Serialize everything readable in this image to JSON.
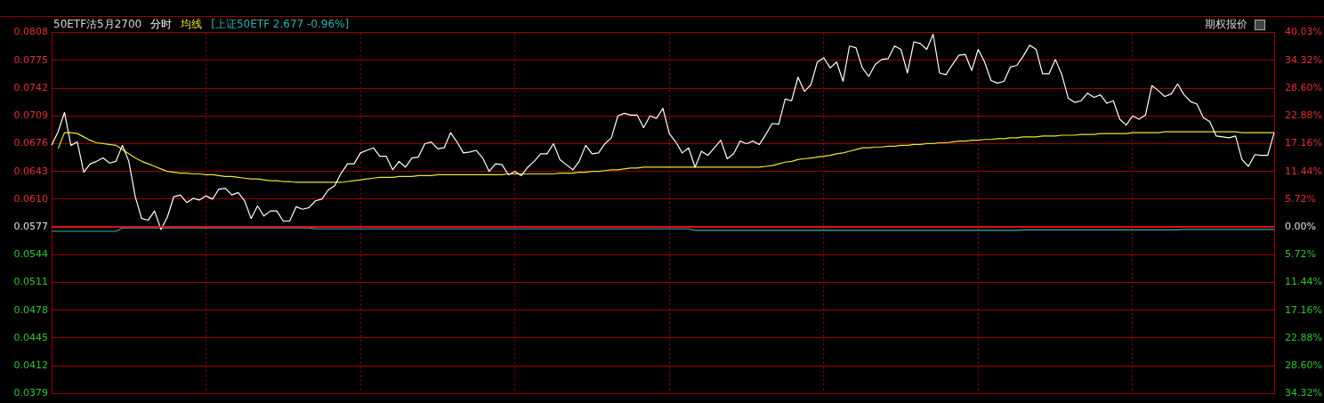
{
  "chart_data": {
    "type": "line",
    "title": "50ETF沽5月2700",
    "legend": "top left",
    "grid": true,
    "marker": "none",
    "line_style": "solid",
    "annotations": [
      "期权报价"
    ],
    "categories": [
      null,
      null,
      null,
      null,
      null,
      null,
      null,
      null,
      null,
      null,
      null,
      null,
      null,
      null,
      null,
      null,
      null,
      null,
      null,
      null,
      null,
      null,
      null,
      null,
      null,
      null,
      null,
      null,
      null,
      null,
      null,
      null,
      null,
      null,
      null,
      null,
      null,
      null,
      null,
      null,
      null,
      null,
      null,
      null,
      null,
      null,
      null,
      null,
      null,
      null,
      null,
      null,
      null,
      null,
      null,
      null,
      null,
      null,
      null,
      null,
      null,
      null,
      null,
      null,
      null,
      null,
      null,
      null,
      null,
      null,
      null,
      null,
      null,
      null,
      null,
      null,
      null,
      null,
      null,
      null,
      null,
      null,
      null,
      null,
      null,
      null,
      null,
      null,
      null,
      null,
      null,
      null,
      null,
      null,
      null,
      null,
      null,
      null,
      null,
      null,
      null,
      null,
      null,
      null,
      null,
      null,
      null,
      null,
      null,
      null,
      null,
      null,
      null,
      null,
      null,
      null,
      null,
      null,
      null,
      null,
      null,
      null,
      null,
      null,
      null,
      null,
      null,
      null,
      null,
      null,
      null,
      null,
      null,
      null,
      null,
      null,
      null,
      null,
      null,
      null,
      null,
      null,
      null,
      null,
      null,
      null,
      null,
      null,
      null,
      null,
      null,
      null,
      null,
      null,
      null,
      null,
      null,
      null,
      null,
      null,
      null,
      null,
      null,
      null,
      null,
      null,
      null,
      null,
      null,
      null,
      null,
      null,
      null,
      null,
      null,
      null,
      null,
      null,
      null,
      null,
      null,
      null,
      null,
      null,
      null,
      null,
      null,
      null,
      null,
      null,
      null
    ],
    "ylim": [
      0.0379,
      0.0808
    ],
    "yticks": [
      0.0379,
      0.0412,
      0.0445,
      0.0478,
      0.0511,
      0.0544,
      0.0577,
      {
        "value": 0.061,
        "label": "0.0610"
      },
      0.0643,
      0.0676,
      0.0709,
      0.0742,
      0.0775,
      0.0808
    ],
    "y2lim": [
      -34.32,
      40.03
    ],
    "y2ticks": [
      {
        "value": -34.32,
        "label": "34.32%"
      },
      {
        "value": -28.6,
        "label": "28.60%"
      },
      {
        "value": -22.88,
        "label": "22.88%"
      },
      {
        "value": -17.16,
        "label": "17.16%"
      },
      {
        "value": -11.44,
        "label": "11.44%"
      },
      {
        "value": -5.72,
        "label": "5.72%"
      },
      {
        "value": 0,
        "label": "0.00%"
      },
      {
        "value": 5.72,
        "label": "5.72%"
      },
      {
        "value": 11.44,
        "label": "11.44%"
      },
      {
        "value": 17.16,
        "label": "17.16%"
      },
      {
        "value": 22.88,
        "label": "22.88%"
      },
      {
        "value": 28.6,
        "label": "28.60%"
      },
      {
        "value": 34.32,
        "label": "34.32%"
      },
      {
        "value": 40.03,
        "label": "40.03%"
      }
    ],
    "ref_lines": [
      {
        "axis": "y",
        "value": 0.0577,
        "color": "#e01010"
      }
    ],
    "series": [
      {
        "name": "分时",
        "color": "#ffffff",
        "values": [
          0.0674,
          0.069,
          0.0713,
          0.0674,
          0.0678,
          0.0642,
          0.0652,
          0.0655,
          0.0659,
          0.0653,
          0.0655,
          0.0674,
          0.0655,
          0.0613,
          0.0587,
          0.0585,
          0.0596,
          0.0574,
          0.0589,
          0.0613,
          0.0615,
          0.0606,
          0.0611,
          0.0609,
          0.0614,
          0.061,
          0.0622,
          0.0623,
          0.0615,
          0.0618,
          0.0608,
          0.0587,
          0.0602,
          0.059,
          0.0596,
          0.0596,
          0.0584,
          0.0584,
          0.0601,
          0.0598,
          0.06,
          0.0608,
          0.061,
          0.0621,
          0.0626,
          0.0641,
          0.0652,
          0.0652,
          0.0665,
          0.0668,
          0.0671,
          0.0661,
          0.0661,
          0.0645,
          0.0655,
          0.0648,
          0.0659,
          0.066,
          0.0676,
          0.0678,
          0.067,
          0.0671,
          0.0689,
          0.0678,
          0.0665,
          0.0666,
          0.0668,
          0.0659,
          0.0643,
          0.0652,
          0.0651,
          0.0639,
          0.0643,
          0.0638,
          0.0648,
          0.0655,
          0.0664,
          0.0664,
          0.0676,
          0.0657,
          0.0651,
          0.0645,
          0.0655,
          0.0674,
          0.0664,
          0.0665,
          0.0676,
          0.0683,
          0.0709,
          0.0712,
          0.071,
          0.071,
          0.0695,
          0.0709,
          0.0706,
          0.0718,
          0.0688,
          0.0678,
          0.0665,
          0.0671,
          0.0648,
          0.0667,
          0.0662,
          0.0671,
          0.068,
          0.0658,
          0.0664,
          0.0679,
          0.0676,
          0.0679,
          0.0675,
          0.0687,
          0.07,
          0.0699,
          0.0729,
          0.0727,
          0.0755,
          0.0738,
          0.0746,
          0.0773,
          0.0778,
          0.0766,
          0.0773,
          0.075,
          0.0792,
          0.079,
          0.0766,
          0.0756,
          0.077,
          0.0776,
          0.0777,
          0.0792,
          0.0788,
          0.076,
          0.0797,
          0.0795,
          0.0788,
          0.0806,
          0.076,
          0.0758,
          0.077,
          0.0781,
          0.0782,
          0.0763,
          0.0788,
          0.0773,
          0.0751,
          0.0748,
          0.075,
          0.0767,
          0.0769,
          0.078,
          0.0793,
          0.0788,
          0.0759,
          0.0759,
          0.0776,
          0.0758,
          0.073,
          0.0725,
          0.0727,
          0.0736,
          0.0731,
          0.0734,
          0.0724,
          0.0727,
          0.0705,
          0.0698,
          0.0709,
          0.0705,
          0.071,
          0.0745,
          0.0739,
          0.0732,
          0.0735,
          0.0747,
          0.0734,
          0.0726,
          0.0723,
          0.0707,
          0.0702,
          0.0685,
          0.0684,
          0.0683,
          0.0685,
          0.0657,
          0.0649,
          0.0663,
          0.0662,
          0.0662,
          0.0689
        ]
      },
      {
        "name": "均线",
        "color": "#e8e830",
        "values": [
          null,
          0.067,
          0.0689,
          0.0689,
          0.0688,
          0.0684,
          0.068,
          0.0677,
          0.0676,
          0.0675,
          0.0674,
          0.0669,
          0.0664,
          0.0659,
          0.0655,
          0.0652,
          0.0649,
          0.0646,
          0.0643,
          0.0642,
          0.0641,
          0.0641,
          0.064,
          0.064,
          0.0639,
          0.0639,
          0.0638,
          0.0637,
          0.0637,
          0.0636,
          0.0635,
          0.0634,
          0.0634,
          0.0633,
          0.0632,
          0.0632,
          0.0631,
          0.0631,
          0.063,
          0.063,
          0.063,
          0.063,
          0.063,
          0.063,
          0.063,
          0.063,
          0.0631,
          0.0632,
          0.0633,
          0.0634,
          0.0635,
          0.0636,
          0.0636,
          0.0636,
          0.0637,
          0.0637,
          0.0637,
          0.0638,
          0.0638,
          0.0638,
          0.0639,
          0.0639,
          0.0639,
          0.0639,
          0.0639,
          0.0639,
          0.0639,
          0.0639,
          0.0639,
          0.0639,
          0.0639,
          0.064,
          0.064,
          0.064,
          0.064,
          0.064,
          0.064,
          0.064,
          0.064,
          0.0641,
          0.0641,
          0.0641,
          0.0642,
          0.0642,
          0.0643,
          0.0643,
          0.0644,
          0.0645,
          0.0645,
          0.0646,
          0.0647,
          0.0647,
          0.0648,
          0.0648,
          0.0648,
          0.0648,
          0.0648,
          0.0648,
          0.0648,
          0.0648,
          0.0648,
          0.0648,
          0.0648,
          0.0648,
          0.0648,
          0.0648,
          0.0648,
          0.0648,
          0.0648,
          0.0648,
          0.0648,
          0.0649,
          0.065,
          0.0652,
          0.0654,
          0.0655,
          0.0657,
          0.0658,
          0.0659,
          0.066,
          0.0661,
          0.0662,
          0.0664,
          0.0665,
          0.0667,
          0.0669,
          0.0671,
          0.0671,
          0.0672,
          0.0672,
          0.0673,
          0.0673,
          0.0674,
          0.0674,
          0.0675,
          0.0675,
          0.0676,
          0.0676,
          0.0677,
          0.0677,
          0.0678,
          0.0679,
          0.0679,
          0.068,
          0.068,
          0.0681,
          0.0681,
          0.0682,
          0.0682,
          0.0683,
          0.0683,
          0.0684,
          0.0684,
          0.0684,
          0.0685,
          0.0685,
          0.0685,
          0.0686,
          0.0686,
          0.0686,
          0.0687,
          0.0687,
          0.0687,
          0.0688,
          0.0688,
          0.0688,
          0.0688,
          0.0688,
          0.0689,
          0.0689,
          0.0689,
          0.0689,
          0.0689,
          0.069,
          0.069,
          0.069,
          0.069,
          0.069,
          0.069,
          0.069,
          0.069,
          0.069,
          0.069,
          0.069,
          0.069,
          0.0689,
          0.0689,
          0.0689,
          0.0689,
          0.0689,
          0.0689
        ]
      },
      {
        "name": "[上证50ETF 2.677 -0.96%]",
        "color": "#30b0b0",
        "axis": "y2",
        "values": [
          -0.9,
          -0.9,
          -0.9,
          -0.9,
          -0.9,
          -0.9,
          -0.9,
          -0.9,
          -0.9,
          -0.9,
          -0.9,
          -0.2,
          -0.2,
          -0.2,
          -0.2,
          -0.2,
          -0.2,
          -0.2,
          -0.2,
          -0.2,
          -0.2,
          -0.2,
          -0.2,
          -0.2,
          -0.2,
          -0.2,
          -0.2,
          -0.2,
          -0.2,
          -0.2,
          -0.2,
          -0.2,
          -0.2,
          -0.2,
          -0.2,
          -0.2,
          -0.2,
          -0.2,
          -0.2,
          -0.2,
          -0.2,
          -0.4,
          -0.4,
          -0.4,
          -0.4,
          -0.4,
          -0.4,
          -0.4,
          -0.4,
          -0.4,
          -0.4,
          -0.4,
          -0.4,
          -0.4,
          -0.4,
          -0.4,
          -0.4,
          -0.4,
          -0.4,
          -0.4,
          -0.4,
          -0.4,
          -0.4,
          -0.4,
          -0.4,
          -0.4,
          -0.4,
          -0.4,
          -0.4,
          -0.4,
          -0.4,
          -0.4,
          -0.4,
          -0.4,
          -0.4,
          -0.4,
          -0.4,
          -0.4,
          -0.4,
          -0.4,
          -0.4,
          -0.4,
          -0.4,
          -0.4,
          -0.4,
          -0.4,
          -0.4,
          -0.4,
          -0.4,
          -0.4,
          -0.4,
          -0.4,
          -0.4,
          -0.4,
          -0.4,
          -0.4,
          -0.4,
          -0.4,
          -0.4,
          -0.4,
          -0.7,
          -0.7,
          -0.7,
          -0.7,
          -0.7,
          -0.7,
          -0.7,
          -0.7,
          -0.7,
          -0.7,
          -0.7,
          -0.7,
          -0.7,
          -0.7,
          -0.7,
          -0.7,
          -0.7,
          -0.7,
          -0.7,
          -0.7,
          -0.7,
          -0.7,
          -0.7,
          -0.7,
          -0.7,
          -0.7,
          -0.7,
          -0.7,
          -0.7,
          -0.7,
          -0.7,
          -0.7,
          -0.7,
          -0.7,
          -0.7,
          -0.7,
          -0.7,
          -0.7,
          -0.7,
          -0.7,
          -0.7,
          -0.7,
          -0.7,
          -0.7,
          -0.7,
          -0.7,
          -0.7,
          -0.7,
          -0.7,
          -0.7,
          -0.7,
          -0.6,
          -0.6,
          -0.6,
          -0.6,
          -0.6,
          -0.6,
          -0.6,
          -0.6,
          -0.6,
          -0.6,
          -0.6,
          -0.6,
          -0.6,
          -0.6,
          -0.6,
          -0.6,
          -0.6,
          -0.6,
          -0.6,
          -0.6,
          -0.6,
          -0.6,
          -0.6,
          -0.6,
          -0.6,
          -0.5,
          -0.5,
          -0.5,
          -0.5,
          -0.5,
          -0.5,
          -0.5,
          -0.5,
          -0.5,
          -0.5,
          -0.5,
          -0.5,
          -0.5,
          -0.5,
          -0.5
        ]
      }
    ]
  }
}
